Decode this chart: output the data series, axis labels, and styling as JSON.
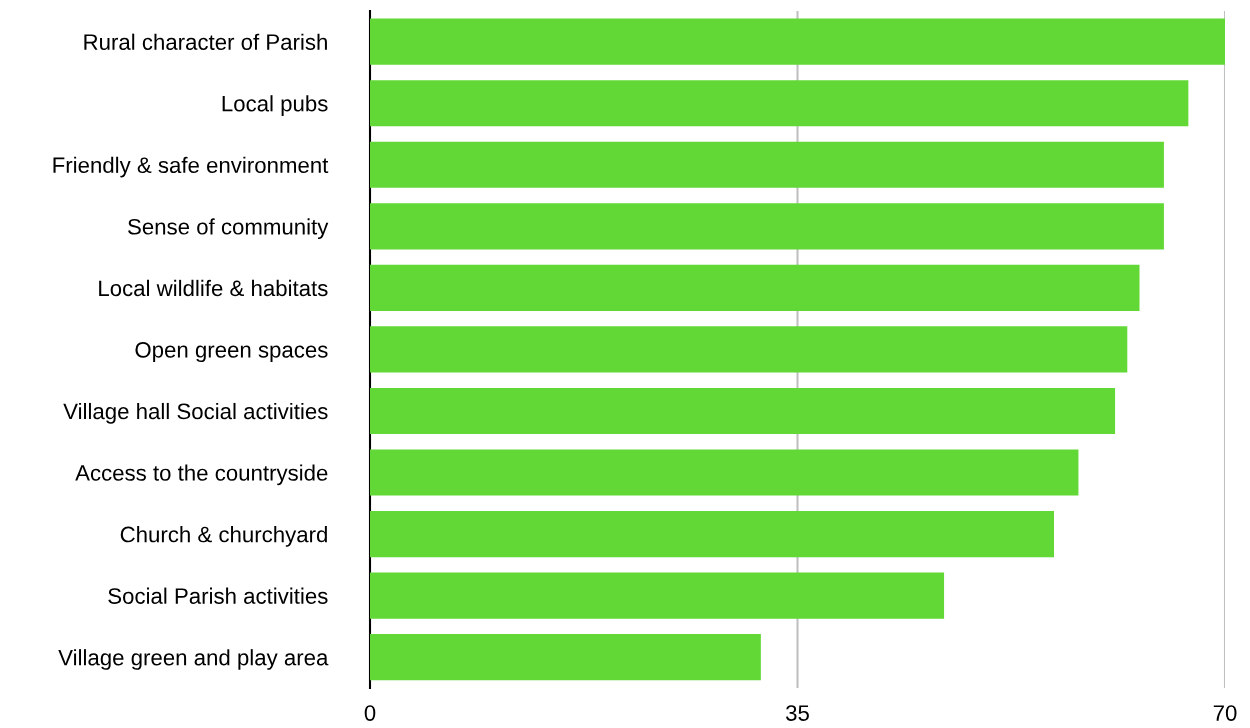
{
  "chart_data": {
    "type": "bar",
    "orientation": "horizontal",
    "categories": [
      "Rural character of Parish",
      "Local pubs",
      "Friendly & safe environment",
      "Sense of community",
      "Local wildlife & habitats",
      "Open green spaces",
      "Village hall Social activities",
      "Access to the countryside",
      "Church & churchyard",
      "Social Parish activities",
      "Village green and play area"
    ],
    "values": [
      70,
      67,
      65,
      65,
      63,
      62,
      61,
      58,
      56,
      47,
      32
    ],
    "color": "#62d836",
    "xlim": [
      0,
      70
    ],
    "xticks": [
      0,
      35,
      70
    ],
    "grid": "x",
    "legend": false
  }
}
